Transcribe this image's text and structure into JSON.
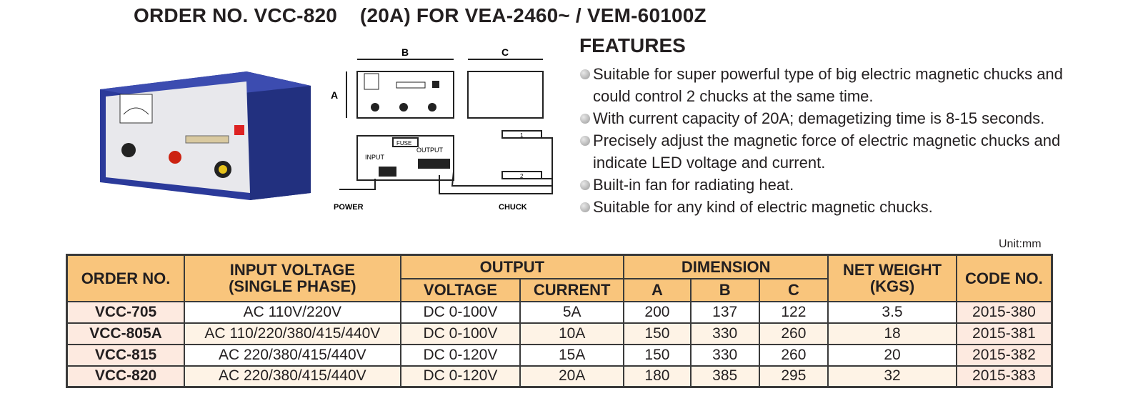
{
  "title": "ORDER NO. VCC-820    (20A) FOR VEA-2460~ / VEM-60100Z",
  "diagram": {
    "label_a": "A",
    "label_b": "B",
    "label_c": "C",
    "fuse": "FUSE",
    "input": "INPUT",
    "output": "OUTPUT",
    "power": "POWER",
    "chuck": "CHUCK",
    "chuck1": "1",
    "chuck2": "2"
  },
  "features": {
    "heading": "FEATURES",
    "items": [
      "Suitable for super powerful type of big electric magnetic chucks and could control 2 chucks at the same time.",
      "With current capacity of 20A; demagetizing time is 8-15 seconds.",
      "Precisely adjust the magnetic force of electric magnetic chucks and indicate LED voltage and current.",
      "Built-in fan for radiating heat.",
      "Suitable for any kind of electric magnetic chucks."
    ]
  },
  "unit": "Unit:mm",
  "table": {
    "headers": {
      "order": "ORDER NO.",
      "input_1": "INPUT VOLTAGE",
      "input_2": "(SINGLE PHASE)",
      "output": "OUTPUT",
      "voltage": "VOLTAGE",
      "current": "CURRENT",
      "dimension": "DIMENSION",
      "a": "A",
      "b": "B",
      "c": "C",
      "weight_1": "NET WEIGHT",
      "weight_2": "(KGS)",
      "code": "CODE NO."
    },
    "rows": [
      {
        "order": "VCC-705",
        "input": "AC 110V/220V",
        "voltage": "DC 0-100V",
        "current": "5A",
        "a": "200",
        "b": "137",
        "c": "122",
        "weight": "3.5",
        "code": "2015-380"
      },
      {
        "order": "VCC-805A",
        "input": "AC 110/220/380/415/440V",
        "voltage": "DC 0-100V",
        "current": "10A",
        "a": "150",
        "b": "330",
        "c": "260",
        "weight": "18",
        "code": "2015-381"
      },
      {
        "order": "VCC-815",
        "input": "AC 220/380/415/440V",
        "voltage": "DC 0-120V",
        "current": "15A",
        "a": "150",
        "b": "330",
        "c": "260",
        "weight": "20",
        "code": "2015-382"
      },
      {
        "order": "VCC-820",
        "input": "AC 220/380/415/440V",
        "voltage": "DC 0-120V",
        "current": "20A",
        "a": "180",
        "b": "385",
        "c": "295",
        "weight": "32",
        "code": "2015-383"
      }
    ]
  },
  "colors": {
    "header": "#f9c57c",
    "first_col": "#fdeae0",
    "alt_row": "#fef3e6",
    "product_blue": "#2b3a9a"
  }
}
